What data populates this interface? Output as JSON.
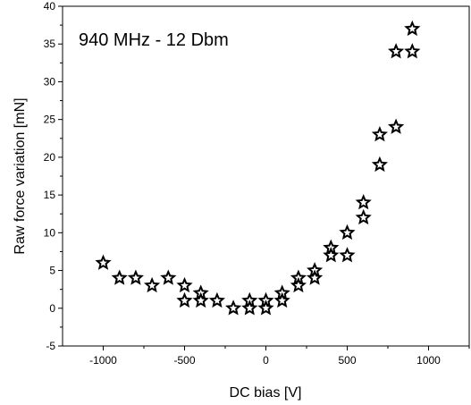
{
  "chart_data": {
    "type": "scatter",
    "title": "",
    "annotation": "940 MHz - 12 Dbm",
    "xlabel": "DC bias [V]",
    "ylabel": "Raw force variation [mN]",
    "xlim": [
      -1250,
      1250
    ],
    "ylim": [
      -5,
      40
    ],
    "xticks": [
      -1000,
      -500,
      0,
      500,
      1000
    ],
    "xtick_labels": [
      "-1000",
      "-500",
      "0",
      "500",
      "1000"
    ],
    "yticks": [
      -5,
      0,
      5,
      10,
      15,
      20,
      25,
      30,
      35,
      40
    ],
    "ytick_labels": [
      "-5",
      "0",
      "5",
      "10",
      "15",
      "20",
      "25",
      "30",
      "35",
      "40"
    ],
    "grid": false,
    "legend": "none",
    "marker": "star",
    "marker_color": "#000000",
    "series": [
      {
        "points": [
          [
            -1000,
            6
          ],
          [
            -900,
            4
          ],
          [
            -800,
            4
          ],
          [
            -700,
            3
          ],
          [
            -600,
            4
          ],
          [
            -500,
            3
          ],
          [
            -500,
            1
          ],
          [
            -400,
            2
          ],
          [
            -400,
            1
          ],
          [
            -300,
            1
          ],
          [
            -200,
            0
          ],
          [
            -100,
            1
          ],
          [
            -100,
            0
          ],
          [
            0,
            1
          ],
          [
            0,
            0
          ],
          [
            100,
            2
          ],
          [
            100,
            1
          ],
          [
            200,
            4
          ],
          [
            200,
            3
          ],
          [
            300,
            5
          ],
          [
            300,
            4
          ],
          [
            400,
            8
          ],
          [
            400,
            7
          ],
          [
            500,
            10
          ],
          [
            500,
            7
          ],
          [
            600,
            14
          ],
          [
            600,
            12
          ],
          [
            700,
            23
          ],
          [
            700,
            19
          ],
          [
            800,
            34
          ],
          [
            800,
            24
          ],
          [
            900,
            37
          ],
          [
            900,
            34
          ]
        ]
      }
    ]
  }
}
